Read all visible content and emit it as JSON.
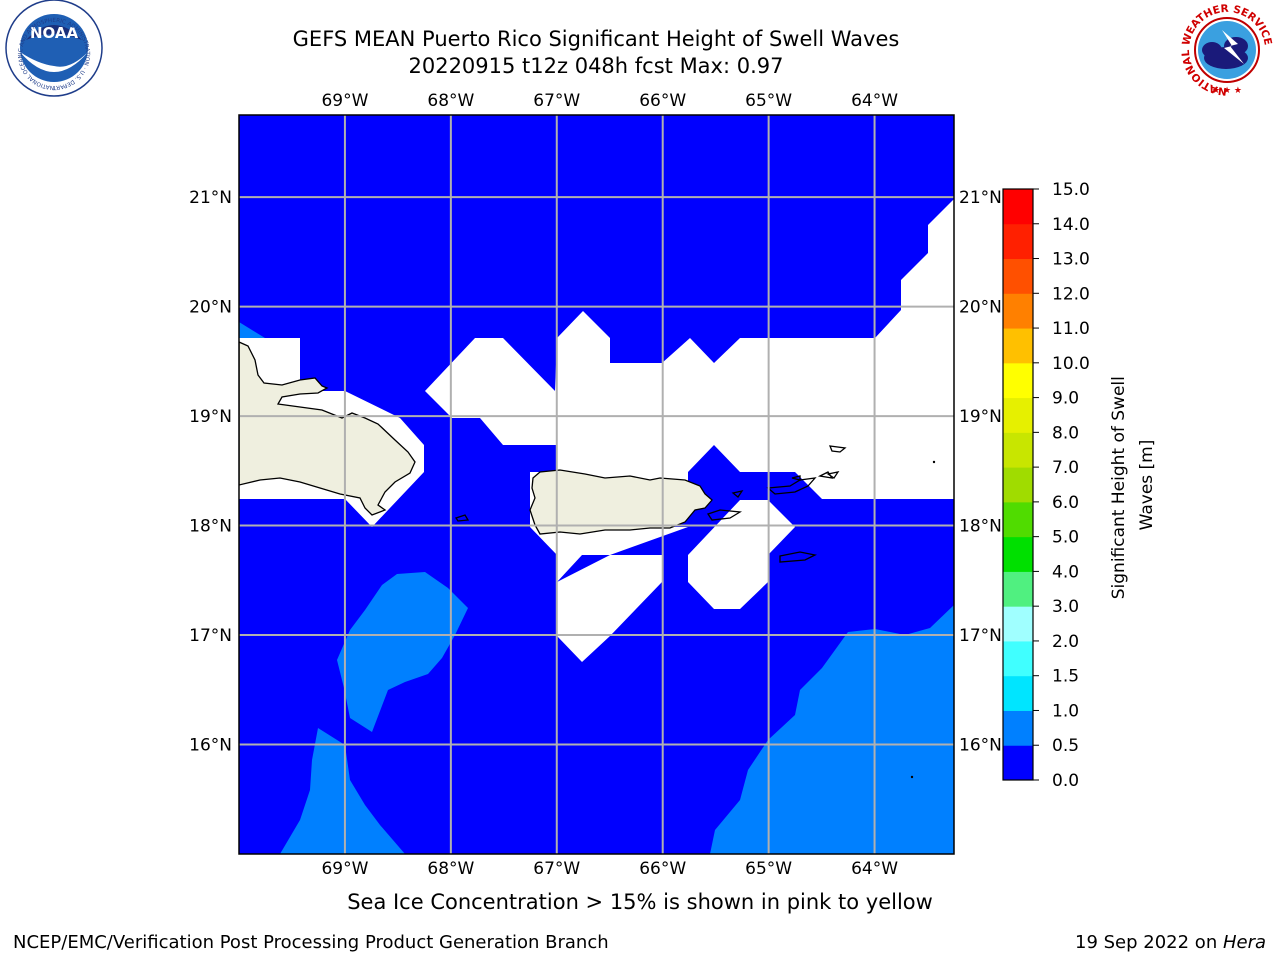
{
  "header": {
    "title_line1": "GEFS MEAN Puerto Rico Significant Height of Swell Waves",
    "title_line2": "20220915 t12z 048h fcst   Max: 0.97"
  },
  "logos": {
    "noaa_text": "NOAA",
    "noaa_ring_text": "NATIONAL OCEANIC AND ATMOSPHERIC ADMINISTRATION · U.S. DEPARTMENT OF COMMERCE",
    "nws_ring_text": "NATIONAL WEATHER SERVICE"
  },
  "map": {
    "lon_labels": [
      "69°W",
      "68°W",
      "67°W",
      "66°W",
      "65°W",
      "64°W"
    ],
    "lat_labels": [
      "21°N",
      "20°N",
      "19°N",
      "18°N",
      "17°N",
      "16°N"
    ],
    "lon_range": [
      -70.0,
      -63.25
    ],
    "lat_range": [
      15.0,
      21.75
    ],
    "gridlines": true,
    "colors": {
      "ocean_low": "#0000ff",
      "ocean_mid": "#0080ff",
      "masked": "#ffffff",
      "land": "#efefdf",
      "coast": "#000000",
      "grid": "#b0b0b0"
    }
  },
  "colorbar": {
    "label": "Significant Height of Swell Waves [m]",
    "label_line1": "Significant Height of Swell",
    "label_line2": "Waves [m]",
    "ticks": [
      "0.0",
      "0.5",
      "1.0",
      "1.5",
      "2.0",
      "3.0",
      "4.0",
      "5.0",
      "6.0",
      "7.0",
      "8.0",
      "9.0",
      "10.0",
      "11.0",
      "12.0",
      "13.0",
      "14.0",
      "15.0"
    ],
    "colors": [
      "#0000ff",
      "#0080ff",
      "#00e5ff",
      "#40ffff",
      "#a0ffff",
      "#50f080",
      "#00e000",
      "#50dc00",
      "#a0dc00",
      "#c8e600",
      "#e6f000",
      "#ffff00",
      "#ffc000",
      "#ff8000",
      "#ff5000",
      "#ff2000",
      "#ff0000"
    ]
  },
  "caption": "Sea Ice Concentration > 15% is shown in pink to yellow",
  "footer": {
    "left": "NCEP/EMC/Verification Post Processing Product Generation Branch",
    "right_prefix": "19 Sep 2022 on ",
    "right_host": "Hera"
  }
}
